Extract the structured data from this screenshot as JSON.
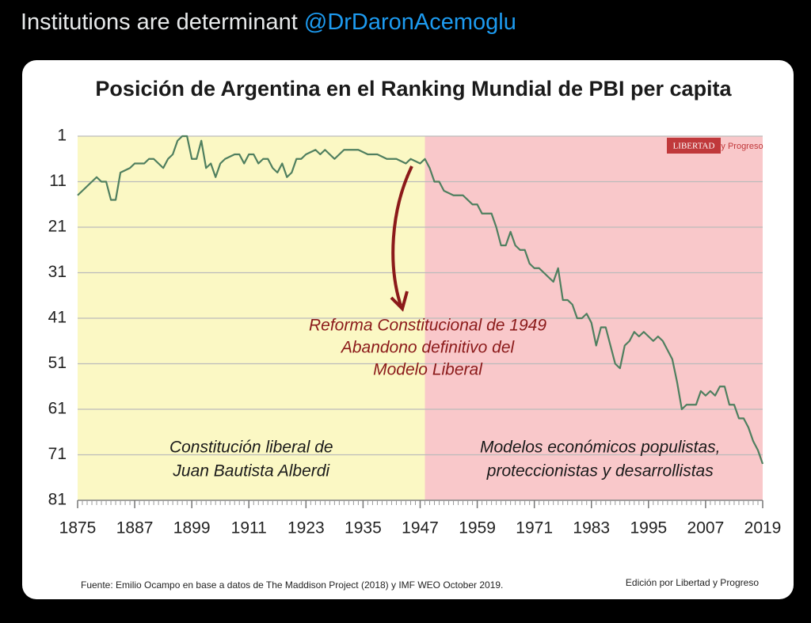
{
  "tweet": {
    "text": "Institutions are determinant",
    "handle": "@DrDaronAcemoglu"
  },
  "chart_data": {
    "type": "line",
    "title": "Posición de Argentina en el Ranking Mundial de PBI per capita",
    "x": [
      1875,
      1877,
      1879,
      1880,
      1881,
      1882,
      1883,
      1884,
      1886,
      1887,
      1889,
      1890,
      1891,
      1893,
      1894,
      1895,
      1896,
      1897,
      1898,
      1899,
      1900,
      1901,
      1902,
      1903,
      1904,
      1905,
      1906,
      1908,
      1909,
      1910,
      1911,
      1912,
      1913,
      1914,
      1915,
      1916,
      1917,
      1918,
      1919,
      1920,
      1921,
      1922,
      1923,
      1925,
      1926,
      1927,
      1928,
      1929,
      1930,
      1931,
      1932,
      1934,
      1936,
      1938,
      1940,
      1942,
      1944,
      1945,
      1947,
      1948,
      1949,
      1950,
      1951,
      1952,
      1954,
      1956,
      1958,
      1959,
      1960,
      1962,
      1963,
      1964,
      1965,
      1966,
      1967,
      1968,
      1969,
      1970,
      1971,
      1972,
      1973,
      1974,
      1975,
      1976,
      1977,
      1978,
      1979,
      1980,
      1981,
      1982,
      1983,
      1984,
      1985,
      1986,
      1987,
      1988,
      1989,
      1990,
      1991,
      1992,
      1993,
      1994,
      1995,
      1996,
      1997,
      1998,
      1999,
      2000,
      2001,
      2002,
      2003,
      2004,
      2005,
      2006,
      2007,
      2008,
      2009,
      2010,
      2011,
      2012,
      2013,
      2014,
      2015,
      2016,
      2017,
      2018,
      2019
    ],
    "values": [
      14,
      12,
      10,
      11,
      11,
      15,
      15,
      9,
      8,
      7,
      7,
      6,
      6,
      8,
      6,
      5,
      2,
      1,
      1,
      6,
      6,
      2,
      8,
      7,
      10,
      7,
      6,
      5,
      5,
      7,
      5,
      5,
      7,
      6,
      6,
      8,
      9,
      7,
      10,
      9,
      6,
      6,
      5,
      4,
      5,
      4,
      5,
      6,
      5,
      4,
      4,
      4,
      5,
      5,
      6,
      6,
      7,
      6,
      7,
      6,
      8,
      11,
      11,
      13,
      14,
      14,
      16,
      16,
      18,
      18,
      21,
      25,
      25,
      22,
      25,
      26,
      26,
      29,
      30,
      30,
      31,
      32,
      33,
      30,
      37,
      37,
      38,
      41,
      41,
      40,
      42,
      47,
      43,
      43,
      47,
      51,
      52,
      47,
      46,
      44,
      45,
      44,
      45,
      46,
      45,
      46,
      48,
      50,
      55,
      61,
      60,
      60,
      60,
      57,
      58,
      57,
      58,
      56,
      56,
      60,
      60,
      63,
      63,
      65,
      68,
      70,
      73
    ],
    "color": "#4f7f5f",
    "xlim": [
      1875,
      2019
    ],
    "xticks": [
      1875,
      1887,
      1899,
      1911,
      1923,
      1935,
      1947,
      1959,
      1971,
      1983,
      1995,
      2007,
      2019
    ],
    "ylim": [
      1,
      81
    ],
    "yticks": [
      1,
      11,
      21,
      31,
      41,
      51,
      61,
      71,
      81
    ],
    "y_inverted": true,
    "grid": true,
    "regions": [
      {
        "from": 1875,
        "to": 1948,
        "color": "#fbf8c4",
        "label": [
          "Constitución liberal de",
          "Juan Bautista Alberdi"
        ]
      },
      {
        "from": 1948,
        "to": 2019,
        "color": "#f9c8ca",
        "label": [
          "Modelos económicos populistas,",
          "proteccionistas y desarrollistas"
        ]
      }
    ],
    "annotation": [
      "Reforma Constitucional de 1949",
      "Abandono definitivo del",
      "Modelo Liberal"
    ],
    "logo": [
      "LIBERTAD",
      "y Progreso"
    ],
    "source": "Fuente: Emilio Ocampo en base a datos de The Maddison Project (2018) y IMF WEO October 2019.",
    "credit": "Edición por Libertad y Progreso"
  }
}
